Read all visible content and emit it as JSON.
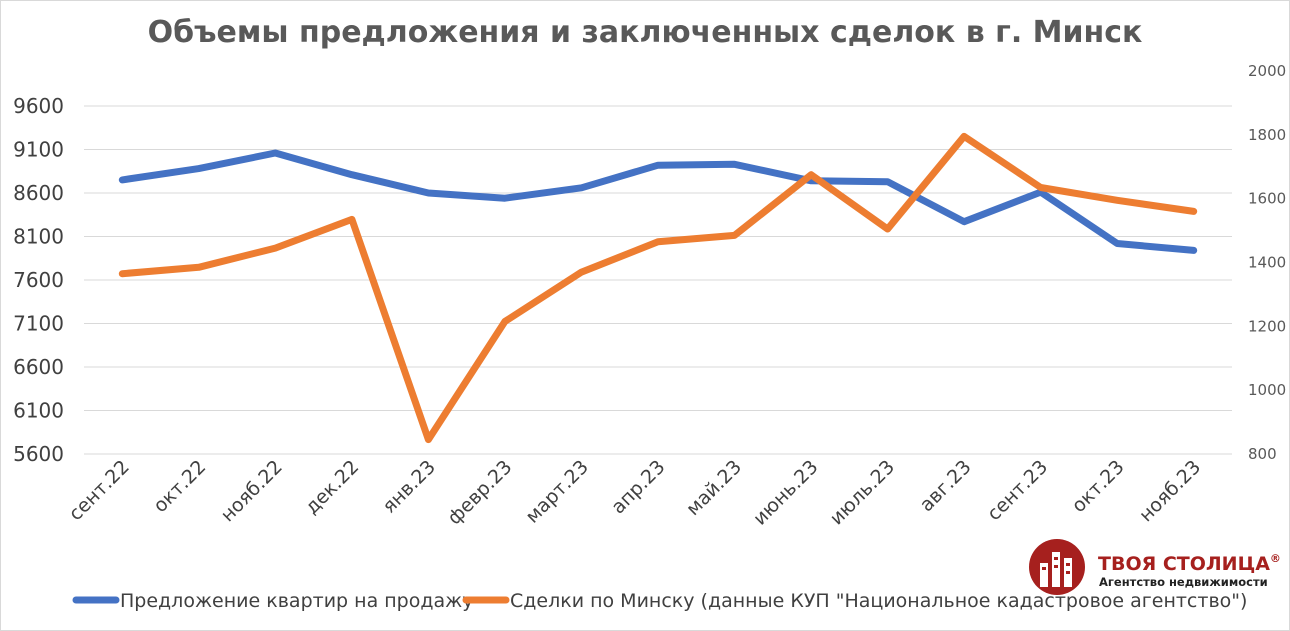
{
  "chart_data": {
    "type": "line",
    "title": "Объемы предложения и заключенных сделок в г. Минск",
    "categories": [
      "сент.22",
      "окт.22",
      "нояб.22",
      "дек.22",
      "янв.23",
      "февр.23",
      "март.23",
      "апр.23",
      "май.23",
      "июнь.23",
      "июль.23",
      "авг.23",
      "сент.23",
      "окт.23",
      "нояб.23"
    ],
    "y_left": {
      "ticks": [
        5600,
        6100,
        6600,
        7100,
        7600,
        8100,
        8600,
        9100,
        9600
      ],
      "range": [
        5600,
        9600
      ]
    },
    "y_right": {
      "ticks": [
        800,
        1000,
        1200,
        1400,
        1600,
        1800,
        2000
      ],
      "range": [
        800,
        2000
      ]
    },
    "grid": true,
    "legend_position": "bottom-left",
    "series": [
      {
        "name": "Предложение квартир на продажу",
        "axis": "left",
        "color": "#4472c4",
        "values": [
          8750,
          8880,
          9060,
          8810,
          8600,
          8540,
          8660,
          8920,
          8930,
          8740,
          8730,
          8270,
          8610,
          8020,
          7940
        ]
      },
      {
        "name": "Сделки по Минску (данные КУП \"Национальное кадастровое агентство\")",
        "axis": "right",
        "color": "#ed7d31",
        "values": [
          1365,
          1385,
          1445,
          1535,
          845,
          1215,
          1370,
          1465,
          1485,
          1675,
          1505,
          1795,
          1635,
          1595,
          1560
        ]
      }
    ]
  },
  "logo": {
    "name": "ТВОЯ СТОЛИЦА",
    "mark": "®",
    "tagline": "Агентство недвижимости",
    "icon": "building-logo-icon",
    "color": "#a6201e"
  }
}
